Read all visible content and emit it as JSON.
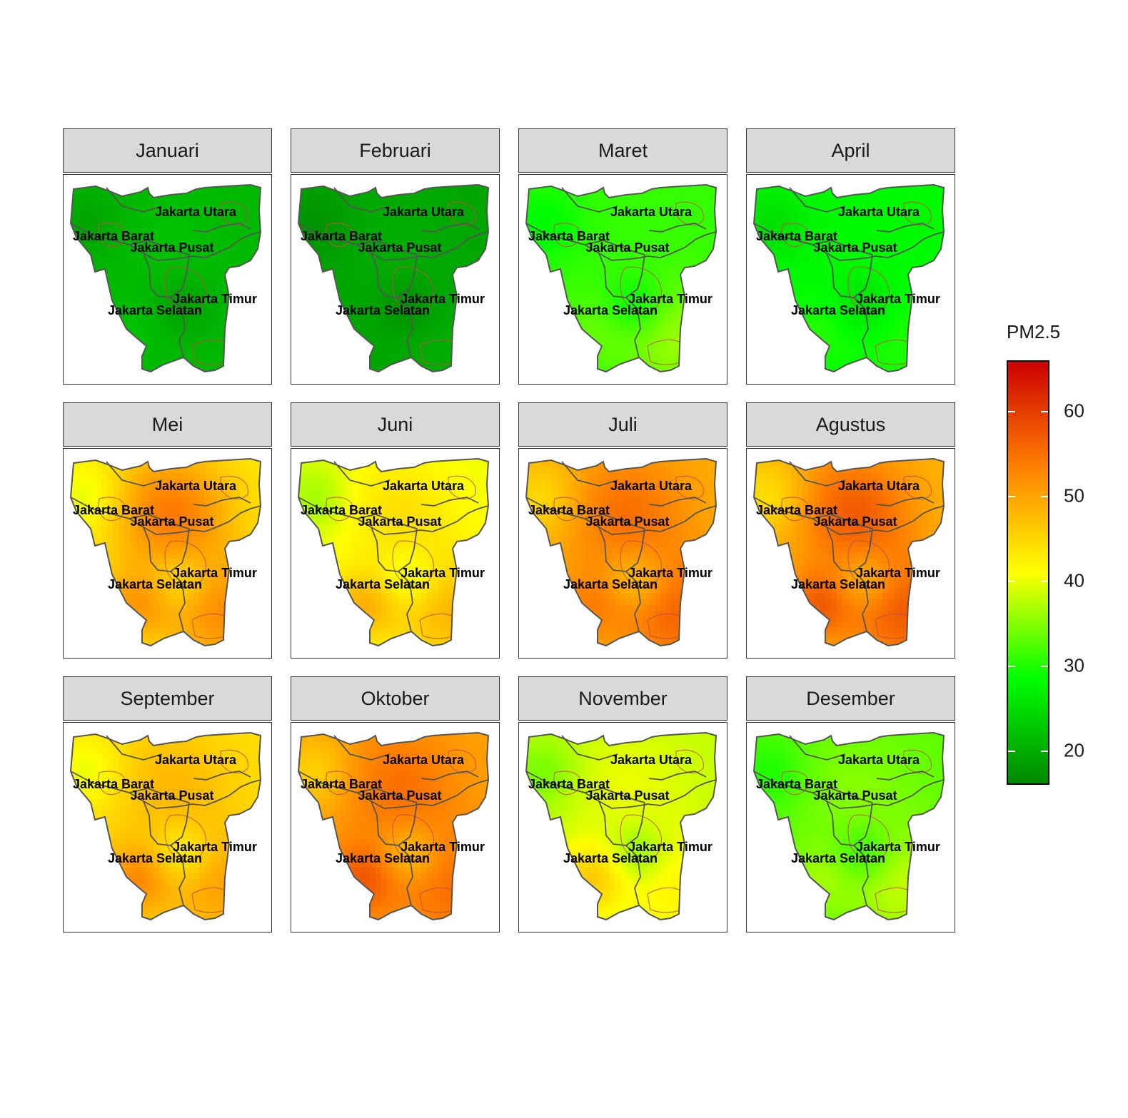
{
  "legend": {
    "title": "PM2.5",
    "ticks": [
      20,
      30,
      40,
      50,
      60
    ],
    "range": [
      16,
      66
    ],
    "colors": [
      "#008800",
      "#00ff00",
      "#ffff00",
      "#ff8000",
      "#cc0000"
    ]
  },
  "regions": [
    "Jakarta Utara",
    "Jakarta Barat",
    "Jakarta Pusat",
    "Jakarta Timur",
    "Jakarta Selatan"
  ],
  "panels": [
    {
      "month": "Januari",
      "base": 21,
      "north": 22,
      "east": 21,
      "southwest": 22
    },
    {
      "month": "Februari",
      "base": 19,
      "north": 20,
      "east": 20,
      "southwest": 19
    },
    {
      "month": "Maret",
      "base": 31,
      "north": 31,
      "east": 36,
      "southwest": 33
    },
    {
      "month": "April",
      "base": 28,
      "north": 28,
      "east": 30,
      "southwest": 30
    },
    {
      "month": "Mei",
      "base": 43,
      "north": 54,
      "east": 52,
      "southwest": 50
    },
    {
      "month": "Juni",
      "base": 40,
      "north": 44,
      "east": 48,
      "southwest": 48
    },
    {
      "month": "Juli",
      "base": 49,
      "north": 55,
      "east": 56,
      "southwest": 53
    },
    {
      "month": "Agustus",
      "base": 48,
      "north": 57,
      "east": 57,
      "southwest": 56
    },
    {
      "month": "September",
      "base": 44,
      "north": 48,
      "east": 50,
      "southwest": 52
    },
    {
      "month": "Oktober",
      "base": 50,
      "north": 55,
      "east": 55,
      "southwest": 57
    },
    {
      "month": "November",
      "base": 38,
      "north": 40,
      "east": 42,
      "southwest": 46
    },
    {
      "month": "Desember",
      "base": 33,
      "north": 35,
      "east": 38,
      "southwest": 36
    }
  ]
}
